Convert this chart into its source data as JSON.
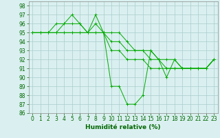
{
  "title": "",
  "xlabel": "Humidité relative (%)",
  "ylabel": "",
  "bg_color": "#daf0f0",
  "grid_color": "#aacccc",
  "line_color": "#00aa00",
  "ylim": [
    86,
    98.5
  ],
  "xlim": [
    -0.5,
    23.5
  ],
  "yticks": [
    86,
    87,
    88,
    89,
    90,
    91,
    92,
    93,
    94,
    95,
    96,
    97,
    98
  ],
  "xticks": [
    0,
    1,
    2,
    3,
    4,
    5,
    6,
    7,
    8,
    9,
    10,
    11,
    12,
    13,
    14,
    15,
    16,
    17,
    18,
    19,
    20,
    21,
    22,
    23
  ],
  "series": [
    [
      95,
      95,
      95,
      95,
      96,
      97,
      96,
      95,
      97,
      95,
      89,
      89,
      87,
      87,
      88,
      93,
      92,
      90,
      92,
      91,
      91,
      91,
      91,
      92
    ],
    [
      95,
      95,
      95,
      96,
      96,
      96,
      96,
      95,
      96,
      95,
      95,
      95,
      94,
      93,
      93,
      93,
      92,
      91,
      91,
      91,
      91,
      91,
      91,
      92
    ],
    [
      95,
      95,
      95,
      95,
      95,
      95,
      95,
      95,
      95,
      95,
      94,
      94,
      93,
      93,
      93,
      92,
      92,
      92,
      92,
      91,
      91,
      91,
      91,
      92
    ],
    [
      95,
      95,
      95,
      95,
      95,
      95,
      95,
      95,
      95,
      95,
      93,
      93,
      92,
      92,
      92,
      91,
      91,
      91,
      91,
      91,
      91,
      91,
      91,
      92
    ]
  ],
  "xlabel_fontsize": 6.5,
  "tick_fontsize": 5.5
}
